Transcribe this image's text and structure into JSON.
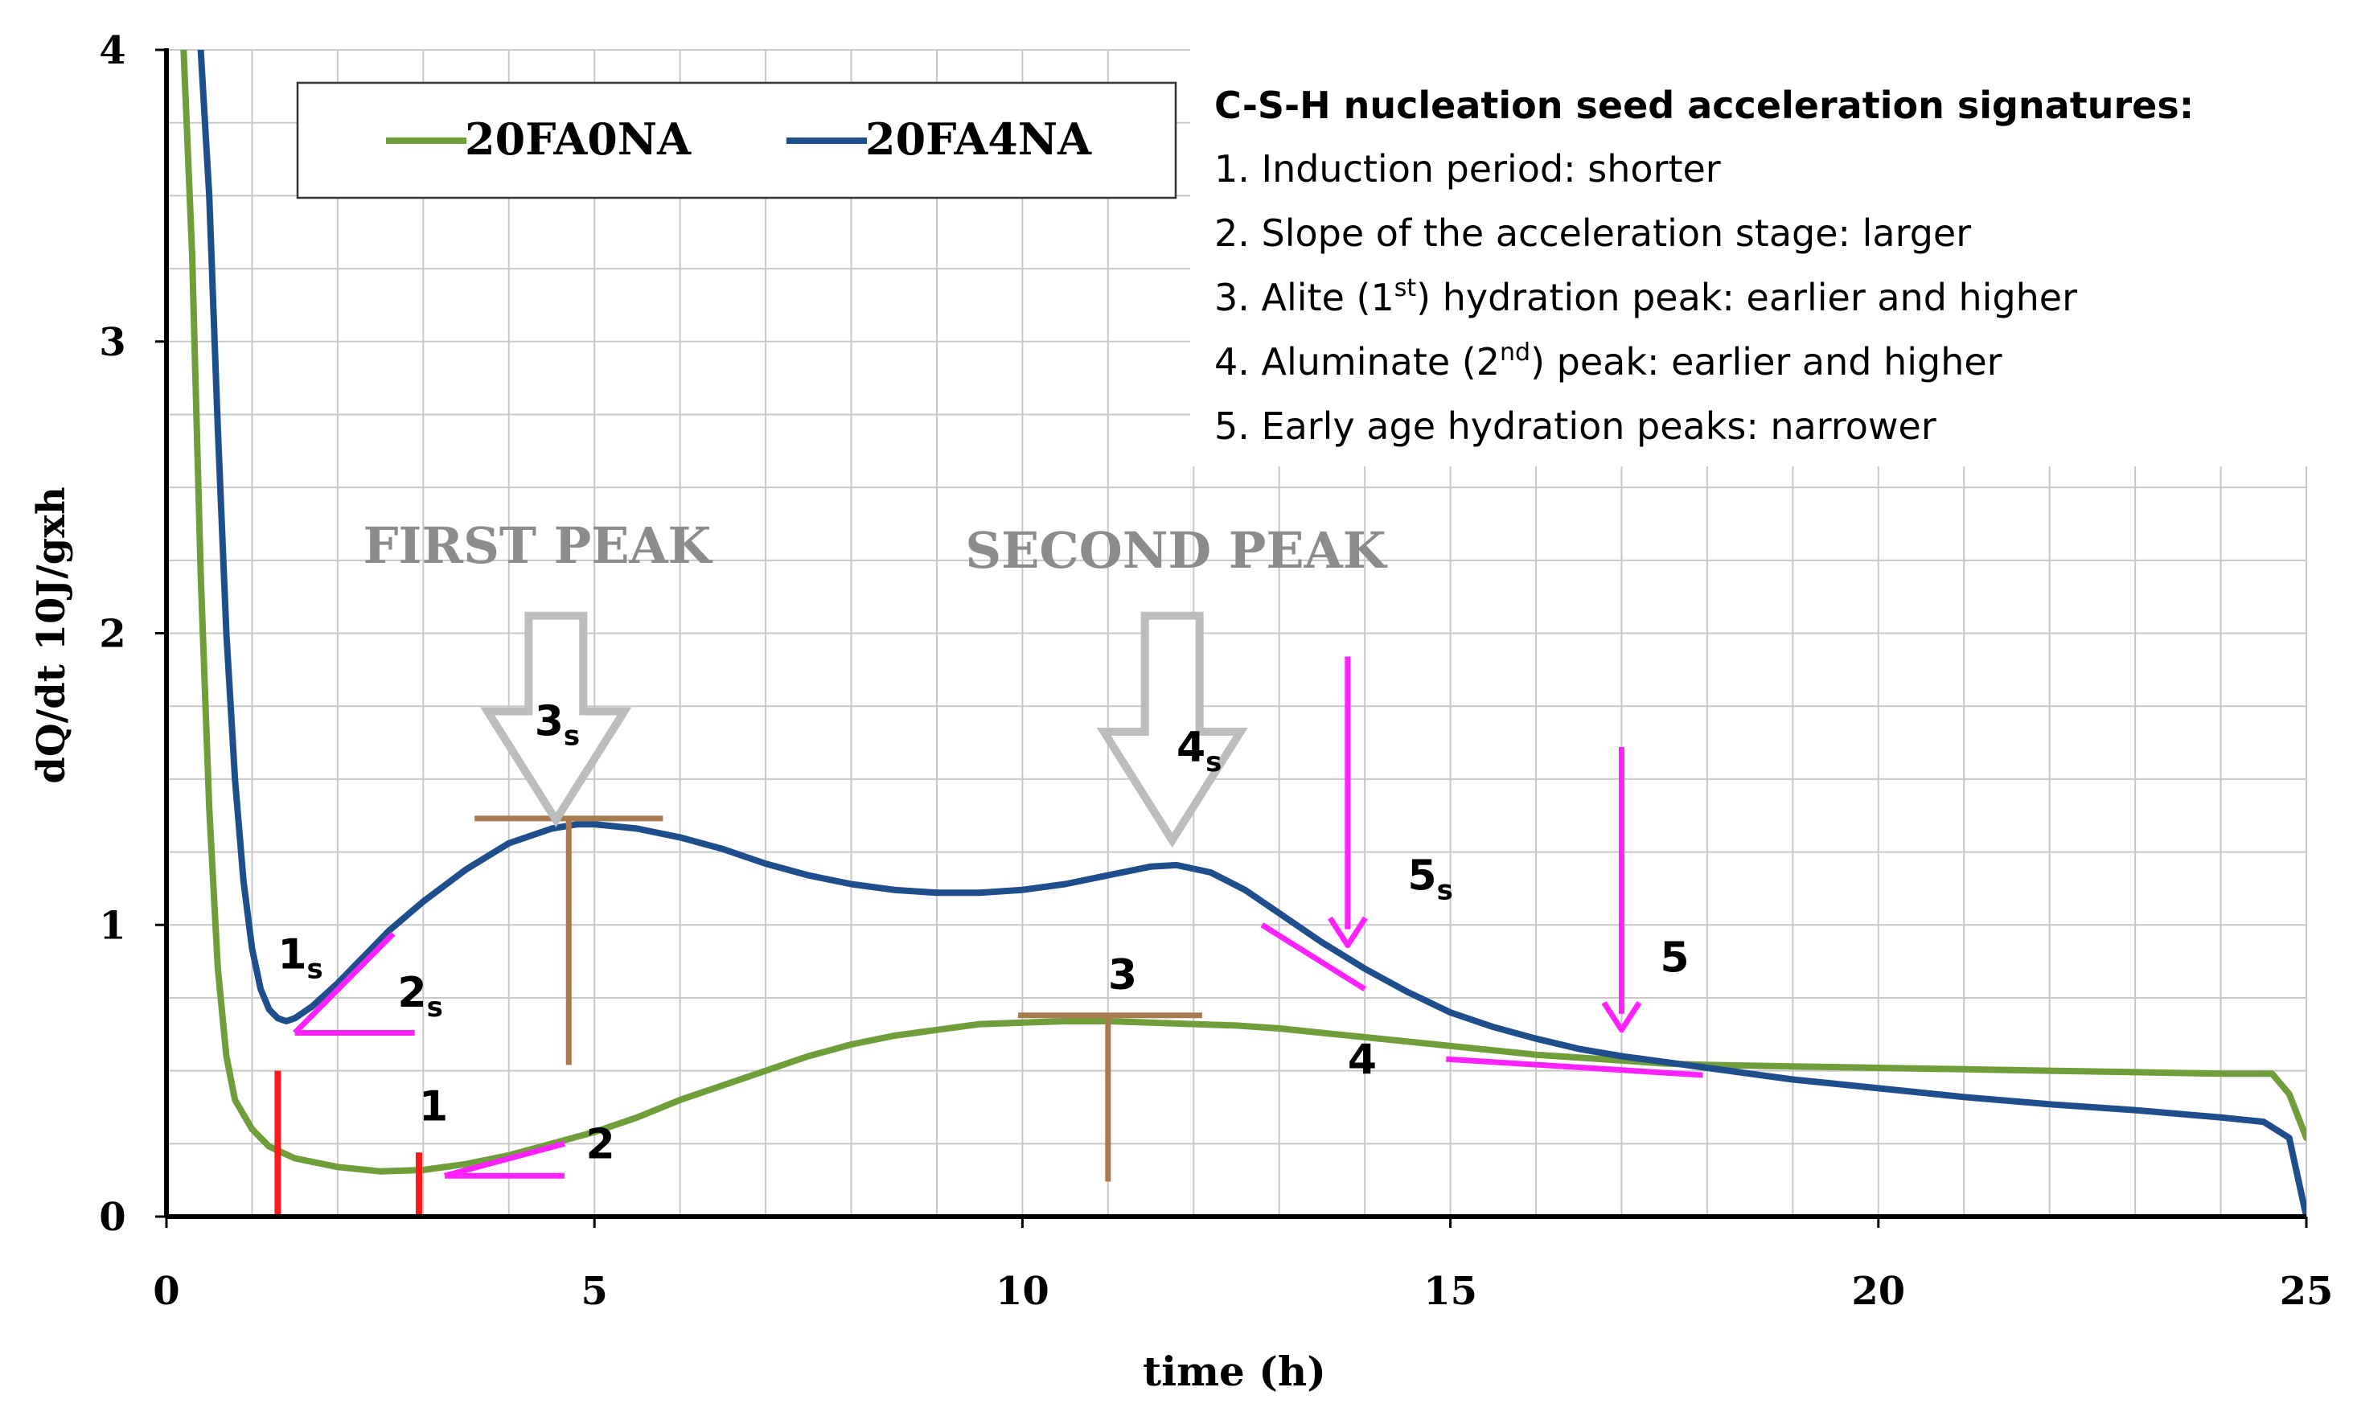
{
  "chart_data": {
    "type": "line",
    "title": "",
    "xlabel": "time (h)",
    "ylabel": "dQ/dt 10J/gxh",
    "xlim": [
      0,
      25
    ],
    "ylim": [
      0,
      4
    ],
    "xticks": [
      0,
      5,
      10,
      15,
      20,
      25
    ],
    "yticks": [
      0,
      1,
      2,
      3,
      4
    ],
    "grid": true,
    "legend_position": "top-left",
    "series": [
      {
        "name": "20FA0NA",
        "color": "#6f9e3a",
        "points": [
          [
            0.2,
            4.0
          ],
          [
            0.3,
            3.3
          ],
          [
            0.4,
            2.2
          ],
          [
            0.5,
            1.4
          ],
          [
            0.6,
            0.85
          ],
          [
            0.7,
            0.55
          ],
          [
            0.8,
            0.4
          ],
          [
            1.0,
            0.3
          ],
          [
            1.2,
            0.24
          ],
          [
            1.5,
            0.2
          ],
          [
            2.0,
            0.17
          ],
          [
            2.5,
            0.155
          ],
          [
            3.0,
            0.16
          ],
          [
            3.5,
            0.18
          ],
          [
            4.0,
            0.21
          ],
          [
            4.5,
            0.25
          ],
          [
            5.0,
            0.29
          ],
          [
            5.5,
            0.34
          ],
          [
            6.0,
            0.4
          ],
          [
            6.5,
            0.45
          ],
          [
            7.0,
            0.5
          ],
          [
            7.5,
            0.55
          ],
          [
            8.0,
            0.59
          ],
          [
            8.5,
            0.62
          ],
          [
            9.0,
            0.64
          ],
          [
            9.5,
            0.66
          ],
          [
            10.0,
            0.665
          ],
          [
            10.5,
            0.67
          ],
          [
            11.0,
            0.67
          ],
          [
            11.5,
            0.665
          ],
          [
            12.0,
            0.66
          ],
          [
            12.5,
            0.655
          ],
          [
            13.0,
            0.645
          ],
          [
            13.5,
            0.63
          ],
          [
            14.0,
            0.615
          ],
          [
            14.5,
            0.6
          ],
          [
            15.0,
            0.585
          ],
          [
            15.5,
            0.57
          ],
          [
            16.0,
            0.555
          ],
          [
            16.5,
            0.545
          ],
          [
            17.0,
            0.535
          ],
          [
            17.5,
            0.525
          ],
          [
            18.0,
            0.52
          ],
          [
            19.0,
            0.515
          ],
          [
            20.0,
            0.51
          ],
          [
            21.0,
            0.505
          ],
          [
            22.0,
            0.5
          ],
          [
            23.0,
            0.495
          ],
          [
            24.0,
            0.49
          ],
          [
            24.6,
            0.49
          ],
          [
            24.8,
            0.42
          ],
          [
            25.0,
            0.27
          ]
        ]
      },
      {
        "name": "20FA4NA",
        "color": "#1f4e8c",
        "points": [
          [
            0.4,
            4.0
          ],
          [
            0.5,
            3.5
          ],
          [
            0.6,
            2.7
          ],
          [
            0.7,
            2.0
          ],
          [
            0.8,
            1.5
          ],
          [
            0.9,
            1.15
          ],
          [
            1.0,
            0.92
          ],
          [
            1.1,
            0.78
          ],
          [
            1.2,
            0.71
          ],
          [
            1.3,
            0.68
          ],
          [
            1.4,
            0.67
          ],
          [
            1.5,
            0.68
          ],
          [
            1.7,
            0.72
          ],
          [
            2.0,
            0.8
          ],
          [
            2.3,
            0.89
          ],
          [
            2.6,
            0.98
          ],
          [
            3.0,
            1.08
          ],
          [
            3.5,
            1.19
          ],
          [
            4.0,
            1.28
          ],
          [
            4.5,
            1.33
          ],
          [
            4.8,
            1.345
          ],
          [
            5.0,
            1.345
          ],
          [
            5.5,
            1.33
          ],
          [
            6.0,
            1.3
          ],
          [
            6.5,
            1.26
          ],
          [
            7.0,
            1.21
          ],
          [
            7.5,
            1.17
          ],
          [
            8.0,
            1.14
          ],
          [
            8.5,
            1.12
          ],
          [
            9.0,
            1.11
          ],
          [
            9.5,
            1.11
          ],
          [
            10.0,
            1.12
          ],
          [
            10.5,
            1.14
          ],
          [
            11.0,
            1.17
          ],
          [
            11.5,
            1.2
          ],
          [
            11.8,
            1.205
          ],
          [
            12.2,
            1.18
          ],
          [
            12.6,
            1.12
          ],
          [
            13.0,
            1.04
          ],
          [
            13.5,
            0.94
          ],
          [
            14.0,
            0.85
          ],
          [
            14.5,
            0.77
          ],
          [
            15.0,
            0.7
          ],
          [
            15.5,
            0.65
          ],
          [
            16.0,
            0.61
          ],
          [
            16.5,
            0.575
          ],
          [
            17.0,
            0.55
          ],
          [
            17.5,
            0.53
          ],
          [
            18.0,
            0.51
          ],
          [
            18.5,
            0.49
          ],
          [
            19.0,
            0.47
          ],
          [
            19.5,
            0.455
          ],
          [
            20.0,
            0.44
          ],
          [
            21.0,
            0.41
          ],
          [
            22.0,
            0.385
          ],
          [
            23.0,
            0.365
          ],
          [
            24.0,
            0.34
          ],
          [
            24.5,
            0.325
          ],
          [
            24.8,
            0.27
          ],
          [
            25.0,
            0.0
          ]
        ]
      }
    ],
    "annotations": {
      "first_peak_label": "FIRST PEAK",
      "second_peak_label": "SECOND PEAK",
      "labels": [
        {
          "id": "label-1s",
          "main": "1",
          "sub": "s",
          "x": 1.3,
          "y": 0.85
        },
        {
          "id": "label-2s",
          "main": "2",
          "sub": "s",
          "x": 2.7,
          "y": 0.72
        },
        {
          "id": "label-3s",
          "main": "3",
          "sub": "s",
          "x": 4.3,
          "y": 1.65
        },
        {
          "id": "label-4s",
          "main": "4",
          "sub": "s",
          "x": 11.8,
          "y": 1.56
        },
        {
          "id": "label-5s",
          "main": "5",
          "sub": "s",
          "x": 14.5,
          "y": 1.12
        },
        {
          "id": "label-1",
          "main": "1",
          "sub": "",
          "x": 2.95,
          "y": 0.33
        },
        {
          "id": "label-2",
          "main": "2",
          "sub": "",
          "x": 4.9,
          "y": 0.2
        },
        {
          "id": "label-3",
          "main": "3",
          "sub": "",
          "x": 11.0,
          "y": 0.78
        },
        {
          "id": "label-4",
          "main": "4",
          "sub": "",
          "x": 13.8,
          "y": 0.49
        },
        {
          "id": "label-5",
          "main": "5",
          "sub": "",
          "x": 17.45,
          "y": 0.84
        }
      ]
    },
    "info_box": {
      "title": "C-S-H nucleation seed acceleration signatures:",
      "items": [
        {
          "pre": "1. Induction period: shorter",
          "sup": "",
          "post": ""
        },
        {
          "pre": "2. Slope of the acceleration stage: larger",
          "sup": "",
          "post": ""
        },
        {
          "pre": "3. Alite (1",
          "sup": "st",
          "post": ") hydration peak: earlier and higher"
        },
        {
          "pre": "4. Aluminate (2",
          "sup": "nd",
          "post": ") peak: earlier and higher"
        },
        {
          "pre": "5. Early age hydration peaks: narrower",
          "sup": "",
          "post": ""
        }
      ]
    },
    "colors": {
      "grid": "#c8c8c8",
      "axis": "#000000",
      "magenta": "#ff22ff",
      "red": "#ff1a1a",
      "brown": "#a87a4f",
      "gray_text": "#8c8c8c",
      "arrow_outline": "#bdbdbd"
    }
  }
}
